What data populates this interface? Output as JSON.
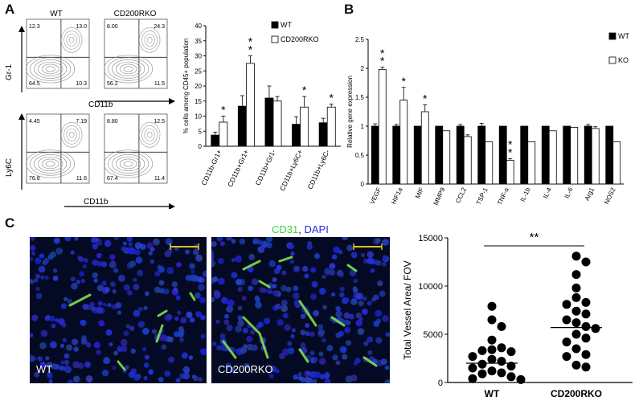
{
  "panels": {
    "a": "A",
    "b": "B",
    "c": "C"
  },
  "panel_a": {
    "flow": {
      "col_wt": "WT",
      "col_ko": "CD200RKO",
      "row1_ylabel": "Gr-1",
      "row1_xlabel": "CD11b",
      "row2_ylabel": "Ly6C",
      "row2_xlabel": "CD11b",
      "plots": [
        {
          "q": [
            "12.3",
            "13.0",
            "64.5",
            "10.3"
          ]
        },
        {
          "q": [
            "8.00",
            "24.3",
            "56.2",
            "11.5"
          ]
        },
        {
          "q": [
            "4.45",
            "7.19",
            "76.8",
            "11.6"
          ]
        },
        {
          "q": [
            "8.80",
            "12.5",
            "67.4",
            "11.4"
          ]
        }
      ]
    },
    "chart_data": {
      "type": "bar",
      "ylabel": "% cells among CD45+ population",
      "ylim": [
        0,
        40
      ],
      "yticks": [
        "0",
        "5",
        "10",
        "15",
        "20",
        "25",
        "30",
        "35",
        "40"
      ],
      "categories": [
        "CD11b-Gr1+",
        "CD11b+Gr1+",
        "CD11b+Gr1-",
        "CD11b+Ly6C+",
        "CD11b+Ly6C-"
      ],
      "series": [
        {
          "name": "WT",
          "color": "#000000",
          "values": [
            3.7,
            13.3,
            16.0,
            7.3,
            7.8
          ],
          "errors": [
            1.0,
            3.5,
            4.0,
            2.5,
            1.5
          ]
        },
        {
          "name": "CD200RKO",
          "color": "#ffffff",
          "values": [
            8.0,
            27.5,
            15.0,
            13.0,
            13.0
          ],
          "errors": [
            2.0,
            2.5,
            1.5,
            3.5,
            1.0
          ]
        }
      ],
      "significance": [
        "*",
        "**",
        "",
        "*",
        "*"
      ]
    }
  },
  "panel_b": {
    "chart_data": {
      "type": "bar",
      "ylabel": "Relative gene expression",
      "ylim": [
        0,
        2.5
      ],
      "yticks": [
        "0",
        "0.5",
        "1",
        "1.5",
        "2",
        "2.5"
      ],
      "categories": [
        "VEGF",
        "HIF1a",
        "MIF",
        "MMP9",
        "CCL2",
        "TSP-1",
        "TNF-α",
        "IL-1b",
        "IL-4",
        "IL-6",
        "Arg1",
        "NOS2"
      ],
      "series": [
        {
          "name": "WT",
          "color": "#000000",
          "values": [
            1,
            1,
            1,
            1,
            1,
            1,
            1,
            1,
            1,
            1,
            1,
            1
          ],
          "errors": [
            0.04,
            0.03,
            0.0,
            0.0,
            0.03,
            0.05,
            0.0,
            0.0,
            0.0,
            0.0,
            0.03,
            0.0
          ]
        },
        {
          "name": "KO",
          "color": "#ffffff",
          "values": [
            1.98,
            1.45,
            1.25,
            0.92,
            0.82,
            0.73,
            0.41,
            0.73,
            0.92,
            0.98,
            0.96,
            0.73
          ],
          "errors": [
            0.04,
            0.22,
            0.12,
            0.0,
            0.03,
            0.0,
            0.03,
            0.0,
            0.0,
            0.0,
            0.03,
            0.0
          ]
        }
      ],
      "significance": [
        "**",
        "*",
        "*",
        "",
        "",
        "",
        "**",
        "",
        "",
        "",
        "",
        ""
      ]
    }
  },
  "panel_c": {
    "stain_cd31": "CD31",
    "stain_sep": ", ",
    "stain_dapi": "DAPI",
    "image_wt_label": "WT",
    "image_ko_label": "CD200RKO",
    "chart_data": {
      "type": "scatter",
      "ylabel": "Total Vessel Area/ FOV",
      "ylim": [
        0,
        15000
      ],
      "yticks": [
        "0",
        "5000",
        "10000",
        "15000"
      ],
      "categories": [
        "WT",
        "CD200RKO"
      ],
      "significance": "**",
      "series": [
        {
          "name": "WT",
          "median": 2000,
          "values": [
            7900,
            6500,
            5800,
            4400,
            3600,
            3400,
            3300,
            3200,
            2700,
            2400,
            2200,
            1900,
            1700,
            1500,
            1200,
            1000,
            900,
            600,
            400,
            300
          ]
        },
        {
          "name": "CD200RKO",
          "median": 5700,
          "values": [
            13100,
            12500,
            11200,
            9800,
            8800,
            8300,
            8100,
            7400,
            7100,
            6500,
            6200,
            5800,
            5600,
            5000,
            4600,
            4200,
            3500,
            2900,
            2700,
            1800,
            1600
          ]
        }
      ]
    }
  }
}
